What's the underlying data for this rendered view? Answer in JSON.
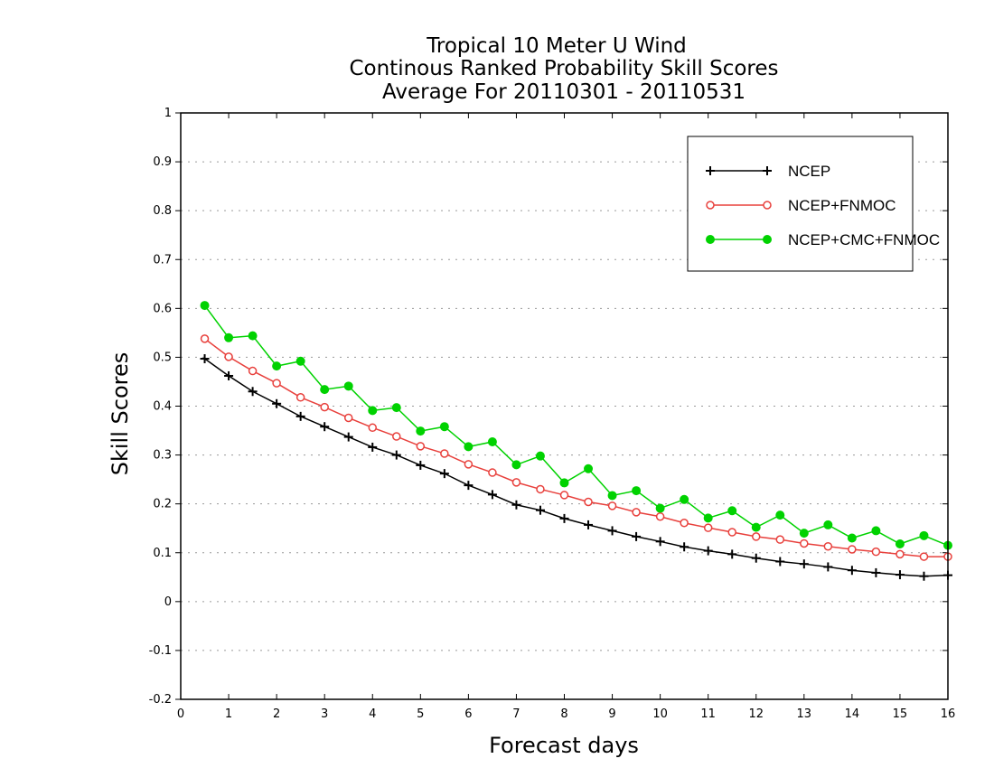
{
  "chart_data": {
    "type": "line",
    "title_lines": [
      "Tropical 10 Meter U Wind",
      "Continous Ranked Probability Skill Scores",
      "Average For 20110301 - 20110531"
    ],
    "xlabel": "Forecast days",
    "ylabel": "Skill Scores",
    "xlim": [
      0,
      16
    ],
    "ylim": [
      -0.2,
      1
    ],
    "xticks": [
      0,
      1,
      2,
      3,
      4,
      5,
      6,
      7,
      8,
      9,
      10,
      11,
      12,
      13,
      14,
      15,
      16
    ],
    "yticks": [
      -0.2,
      -0.1,
      0,
      0.1,
      0.2,
      0.3,
      0.4,
      0.5,
      0.6,
      0.7,
      0.8,
      0.9,
      1
    ],
    "ytick_labels": [
      "-0.2",
      "-0.1",
      "0",
      "0.1",
      "0.2",
      "0.3",
      "0.4",
      "0.5",
      "0.6",
      "0.7",
      "0.8",
      "0.9",
      "1"
    ],
    "grid": "horizontal dotted",
    "legend_position": "top-right",
    "x": [
      0.5,
      1,
      1.5,
      2,
      2.5,
      3,
      3.5,
      4,
      4.5,
      5,
      5.5,
      6,
      6.5,
      7,
      7.5,
      8,
      8.5,
      9,
      9.5,
      10,
      10.5,
      11,
      11.5,
      12,
      12.5,
      13,
      13.5,
      14,
      14.5,
      15,
      15.5,
      16
    ],
    "series": [
      {
        "name": "NCEP",
        "color": "#000000",
        "marker": "plus",
        "values": [
          0.497,
          0.462,
          0.43,
          0.405,
          0.379,
          0.358,
          0.337,
          0.316,
          0.3,
          0.279,
          0.262,
          0.238,
          0.219,
          0.198,
          0.187,
          0.17,
          0.157,
          0.145,
          0.133,
          0.123,
          0.112,
          0.104,
          0.097,
          0.089,
          0.082,
          0.077,
          0.071,
          0.064,
          0.059,
          0.055,
          0.052,
          0.054
        ]
      },
      {
        "name": "NCEP+FNMOC",
        "color": "#e8403c",
        "marker": "open-circle",
        "values": [
          0.538,
          0.501,
          0.472,
          0.447,
          0.418,
          0.398,
          0.376,
          0.356,
          0.338,
          0.318,
          0.303,
          0.281,
          0.264,
          0.244,
          0.23,
          0.218,
          0.204,
          0.196,
          0.183,
          0.174,
          0.161,
          0.151,
          0.142,
          0.133,
          0.127,
          0.119,
          0.113,
          0.107,
          0.102,
          0.097,
          0.092,
          0.092
        ]
      },
      {
        "name": "NCEP+CMC+FNMOC",
        "color": "#00d200",
        "marker": "filled-circle",
        "values": [
          0.606,
          0.54,
          0.544,
          0.482,
          0.492,
          0.434,
          0.441,
          0.391,
          0.397,
          0.349,
          0.358,
          0.317,
          0.327,
          0.28,
          0.298,
          0.243,
          0.272,
          0.217,
          0.227,
          0.191,
          0.209,
          0.171,
          0.186,
          0.152,
          0.177,
          0.14,
          0.157,
          0.13,
          0.145,
          0.118,
          0.135,
          0.115
        ]
      }
    ]
  }
}
